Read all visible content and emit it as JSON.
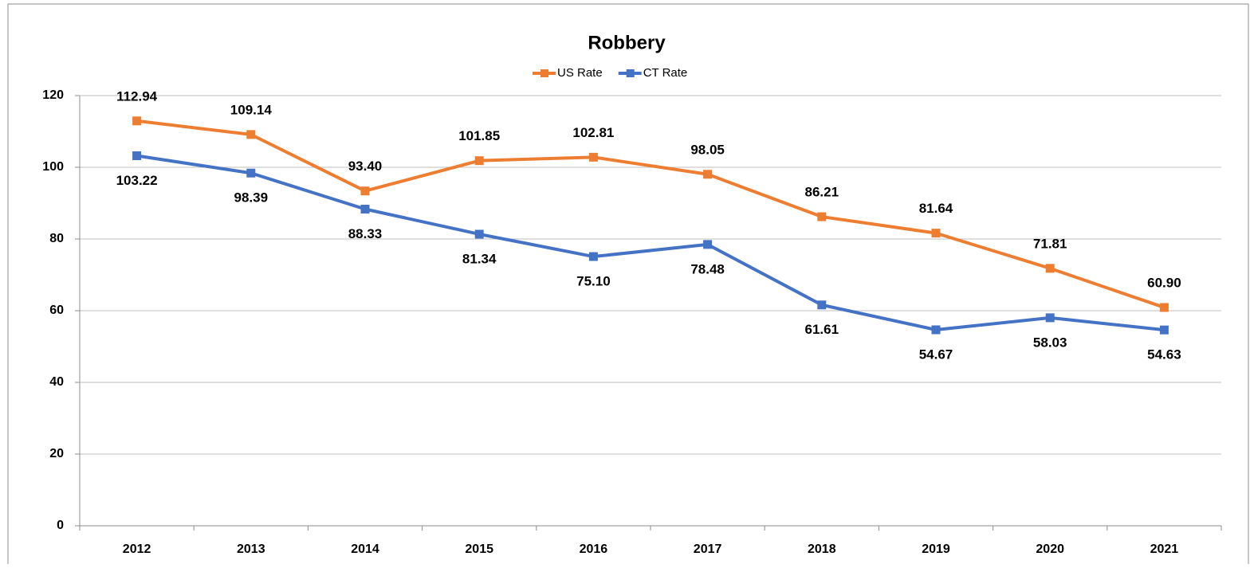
{
  "chart_data": {
    "type": "line",
    "title": "Robbery",
    "categories": [
      "2012",
      "2013",
      "2014",
      "2015",
      "2016",
      "2017",
      "2018",
      "2019",
      "2020",
      "2021"
    ],
    "series": [
      {
        "name": "US Rate",
        "color": "#ED7D31",
        "values": [
          112.94,
          109.14,
          93.4,
          101.85,
          102.81,
          98.05,
          86.21,
          81.64,
          71.81,
          60.9
        ],
        "value_labels": [
          "112.94",
          "109.14",
          "93.40",
          "101.85",
          "102.81",
          "98.05",
          "86.21",
          "81.64",
          "71.81",
          "60.90"
        ]
      },
      {
        "name": "CT Rate",
        "color": "#4472C4",
        "values": [
          103.22,
          98.39,
          88.33,
          81.34,
          75.1,
          78.48,
          61.61,
          54.67,
          58.03,
          54.63
        ],
        "value_labels": [
          "103.22",
          "98.39",
          "88.33",
          "81.34",
          "75.10",
          "78.48",
          "61.61",
          "54.67",
          "58.03",
          "54.63"
        ]
      }
    ],
    "ylim": [
      0,
      120
    ],
    "yticks": [
      0,
      20,
      40,
      60,
      80,
      100,
      120
    ],
    "grid": true,
    "legend": "top"
  }
}
